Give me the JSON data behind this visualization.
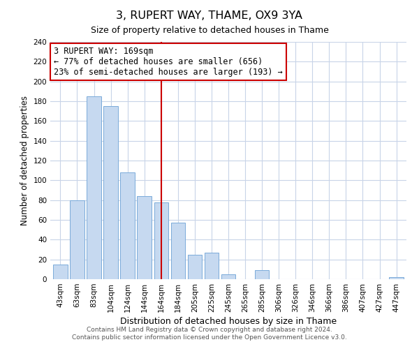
{
  "title": "3, RUPERT WAY, THAME, OX9 3YA",
  "subtitle": "Size of property relative to detached houses in Thame",
  "xlabel": "Distribution of detached houses by size in Thame",
  "ylabel": "Number of detached properties",
  "bins": [
    "43sqm",
    "63sqm",
    "83sqm",
    "104sqm",
    "124sqm",
    "144sqm",
    "164sqm",
    "184sqm",
    "205sqm",
    "225sqm",
    "245sqm",
    "265sqm",
    "285sqm",
    "306sqm",
    "326sqm",
    "346sqm",
    "366sqm",
    "386sqm",
    "407sqm",
    "427sqm",
    "447sqm"
  ],
  "values": [
    15,
    80,
    185,
    175,
    108,
    84,
    78,
    57,
    25,
    27,
    5,
    0,
    9,
    0,
    0,
    0,
    0,
    0,
    0,
    0,
    2
  ],
  "bar_color": "#c6d9f0",
  "bar_edge_color": "#7aabda",
  "vline_color": "#cc0000",
  "vline_x_index": 6,
  "annotation_text": "3 RUPERT WAY: 169sqm\n← 77% of detached houses are smaller (656)\n23% of semi-detached houses are larger (193) →",
  "annotation_box_edge_color": "#cc0000",
  "annotation_box_face_color": "#ffffff",
  "ylim": [
    0,
    240
  ],
  "yticks": [
    0,
    20,
    40,
    60,
    80,
    100,
    120,
    140,
    160,
    180,
    200,
    220,
    240
  ],
  "footer_line1": "Contains HM Land Registry data © Crown copyright and database right 2024.",
  "footer_line2": "Contains public sector information licensed under the Open Government Licence v3.0.",
  "background_color": "#ffffff",
  "grid_color": "#c8d4e8"
}
